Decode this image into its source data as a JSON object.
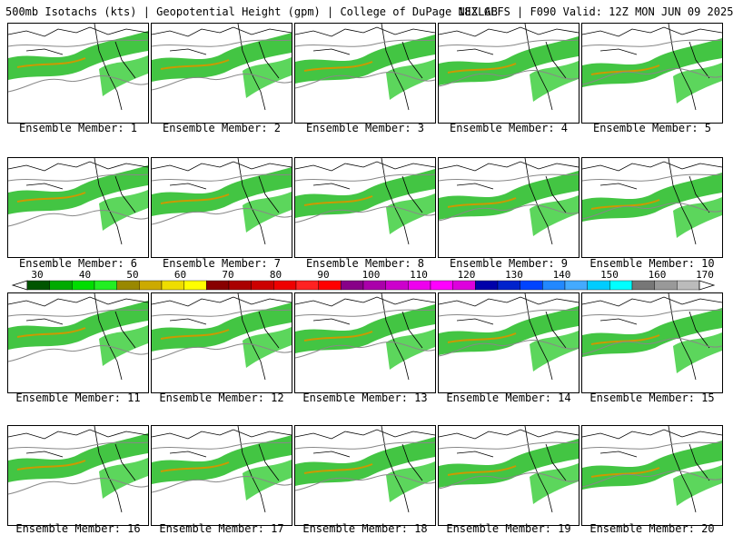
{
  "header": {
    "title": "500mb Isotachs (kts) | Geopotential Height (gpm) | College of DuPage NEXLAB",
    "run": "18Z GEFS | F090 Valid: 12Z MON JUN 09 2025"
  },
  "panels": [
    {
      "label": "Ensemble Member: 1"
    },
    {
      "label": "Ensemble Member: 2"
    },
    {
      "label": "Ensemble Member: 3"
    },
    {
      "label": "Ensemble Member: 4"
    },
    {
      "label": "Ensemble Member: 5"
    },
    {
      "label": "Ensemble Member: 6"
    },
    {
      "label": "Ensemble Member: 7"
    },
    {
      "label": "Ensemble Member: 8"
    },
    {
      "label": "Ensemble Member: 9"
    },
    {
      "label": "Ensemble Member: 10"
    },
    {
      "label": "Ensemble Member: 11"
    },
    {
      "label": "Ensemble Member: 12"
    },
    {
      "label": "Ensemble Member: 13"
    },
    {
      "label": "Ensemble Member: 14"
    },
    {
      "label": "Ensemble Member: 15"
    },
    {
      "label": "Ensemble Member: 16"
    },
    {
      "label": "Ensemble Member: 17"
    },
    {
      "label": "Ensemble Member: 18"
    },
    {
      "label": "Ensemble Member: 19"
    },
    {
      "label": "Ensemble Member: 20"
    }
  ],
  "colorbar": {
    "labels": [
      "30",
      "40",
      "50",
      "60",
      "70",
      "80",
      "90",
      "100",
      "110",
      "120",
      "130",
      "140",
      "150",
      "160",
      "170"
    ],
    "colors": [
      "#005500",
      "#00aa00",
      "#00dd00",
      "#22ee22",
      "#998800",
      "#ccaa00",
      "#eedd00",
      "#ffff00",
      "#880000",
      "#aa0000",
      "#cc0000",
      "#ee0000",
      "#ff2222",
      "#ff0000",
      "#880088",
      "#aa00aa",
      "#cc00cc",
      "#ee00ee",
      "#ff00ff",
      "#dd00dd",
      "#0000aa",
      "#0022cc",
      "#0044ff",
      "#2288ff",
      "#44aaff",
      "#00ccff",
      "#00ffff",
      "#777777",
      "#999999",
      "#bbbbbb"
    ]
  }
}
